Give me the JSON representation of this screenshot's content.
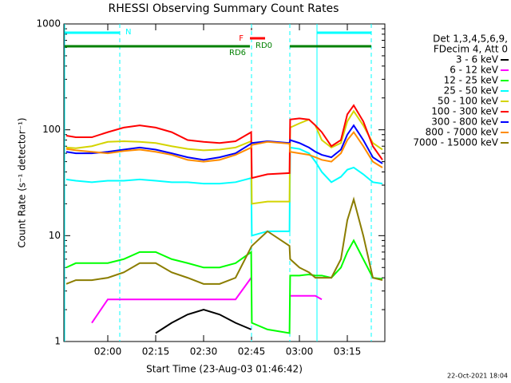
{
  "chart_data": {
    "type": "line",
    "title": "RHESSI Observing Summary Count Rates",
    "x_label": "Start Time (23-Aug-03 01:46:42)",
    "y_label": "Count Rate (s⁻¹ detector⁻¹)",
    "legend_header": [
      "Det 1,3,4,5,6,9,",
      "FDecim 4, Att 0"
    ],
    "footer": "22-Oct-2021 18:04",
    "log_y": true,
    "xlim": [
      106.25,
      206.75
    ],
    "xticks": [
      {
        "value": 120,
        "label": "02:00"
      },
      {
        "value": 135,
        "label": "02:15"
      },
      {
        "value": 150,
        "label": "02:30"
      },
      {
        "value": 165,
        "label": "02:45"
      },
      {
        "value": 180,
        "label": "03:00"
      },
      {
        "value": 195,
        "label": "03:15"
      }
    ],
    "ylim": [
      1,
      1000
    ],
    "yticks": [
      1,
      10,
      100,
      1000
    ],
    "yminor_ticks": [
      2,
      3,
      4,
      5,
      6,
      7,
      8,
      9,
      20,
      30,
      40,
      50,
      60,
      70,
      80,
      90,
      200,
      300,
      400,
      500,
      600,
      700,
      800,
      900
    ],
    "x": [
      107,
      110,
      115,
      120,
      125,
      130,
      135,
      140,
      145,
      150,
      155,
      160,
      164.9,
      165.1,
      170,
      176.9,
      177.1,
      180,
      183,
      185,
      187,
      190,
      193,
      195,
      197,
      200,
      203,
      206
    ],
    "series": [
      {
        "name": "3 - 6 keV",
        "color": "#000000",
        "values": [
          null,
          null,
          null,
          null,
          null,
          null,
          1.2,
          1.5,
          1.8,
          2,
          1.8,
          1.5,
          1.3,
          null,
          null,
          null,
          null,
          null,
          null,
          null,
          null,
          null,
          null,
          null,
          null,
          null,
          null,
          null
        ]
      },
      {
        "name": "6 - 12 keV",
        "color": "#ff00ff",
        "values": [
          null,
          null,
          1.5,
          2.5,
          2.5,
          2.5,
          2.5,
          2.5,
          2.5,
          2.5,
          2.5,
          2.5,
          4,
          null,
          null,
          null,
          2.7,
          2.7,
          2.7,
          2.7,
          2.5,
          null,
          null,
          null,
          null,
          null,
          null,
          null
        ]
      },
      {
        "name": "12 - 25 keV",
        "color": "#00ff00",
        "values": [
          5,
          5.5,
          5.5,
          5.5,
          6,
          7,
          7,
          6,
          5.5,
          5,
          5,
          5.5,
          7,
          1.5,
          1.3,
          1.2,
          4.2,
          4.2,
          4.3,
          4.2,
          4.2,
          4,
          5,
          7,
          9,
          6,
          4,
          3.9
        ]
      },
      {
        "name": "25 - 50 keV",
        "color": "#00ffff",
        "values": [
          34,
          33,
          32,
          33,
          33,
          34,
          33,
          32,
          32,
          31,
          31,
          32,
          35,
          10,
          11,
          11,
          68,
          66,
          60,
          50,
          40,
          32,
          36,
          42,
          44,
          38,
          32,
          31
        ]
      },
      {
        "name": "50 - 100 keV",
        "color": "#d4d400",
        "values": [
          68,
          67,
          70,
          77,
          78,
          77,
          75,
          70,
          66,
          64,
          65,
          68,
          78,
          20,
          21,
          21,
          105,
          115,
          125,
          110,
          80,
          68,
          75,
          120,
          150,
          110,
          75,
          65
        ]
      },
      {
        "name": "100 - 300 keV",
        "color": "#ff0000",
        "values": [
          88,
          85,
          85,
          95,
          105,
          110,
          105,
          95,
          80,
          77,
          75,
          78,
          95,
          35,
          38,
          39,
          125,
          128,
          125,
          110,
          95,
          70,
          80,
          140,
          170,
          120,
          70,
          52
        ]
      },
      {
        "name": "300 - 800 keV",
        "color": "#0000ff",
        "values": [
          62,
          60,
          60,
          62,
          65,
          68,
          65,
          60,
          55,
          52,
          55,
          60,
          74,
          75,
          78,
          75,
          80,
          75,
          68,
          62,
          58,
          55,
          65,
          90,
          110,
          80,
          55,
          48
        ]
      },
      {
        "name": "800 - 7000 keV",
        "color": "#ff8c00",
        "values": [
          66,
          64,
          62,
          60,
          63,
          65,
          62,
          58,
          52,
          50,
          52,
          58,
          68,
          72,
          77,
          74,
          62,
          60,
          58,
          55,
          52,
          50,
          60,
          80,
          95,
          70,
          50,
          44
        ]
      },
      {
        "name": "7000 - 15000 keV",
        "color": "#8b7d00",
        "values": [
          3.5,
          3.8,
          3.8,
          4,
          4.5,
          5.5,
          5.5,
          4.5,
          4,
          3.5,
          3.5,
          4,
          7.8,
          8,
          11,
          8,
          6,
          5,
          4.5,
          4,
          4,
          4,
          6,
          14,
          22,
          10,
          4,
          3.8
        ]
      }
    ],
    "vlines": [
      {
        "x": 106.5,
        "dashed": false,
        "color": "#00ffff"
      },
      {
        "x": 123.75,
        "dashed": true,
        "color": "#00ffff"
      },
      {
        "x": 165,
        "dashed": true,
        "color": "#00ffff"
      },
      {
        "x": 177,
        "dashed": true,
        "color": "#00ffff"
      },
      {
        "x": 185.5,
        "dashed": false,
        "color": "#00ffff"
      },
      {
        "x": 202.5,
        "dashed": true,
        "color": "#00ffff"
      }
    ],
    "flags": [
      {
        "name": "N",
        "color": "#00ffff",
        "segments": [
          [
            106.5,
            123.75
          ],
          [
            185.5,
            202.5
          ]
        ]
      },
      {
        "name": "F",
        "color": "#ff0000",
        "segments": [
          [
            164.5,
            169.25
          ]
        ]
      },
      {
        "name": "RD0",
        "color": "#008000",
        "segments": [
          [
            106.5,
            164.5
          ],
          [
            177,
            202.5
          ]
        ]
      },
      {
        "name": "RD6",
        "color": "#008000"
      }
    ]
  }
}
